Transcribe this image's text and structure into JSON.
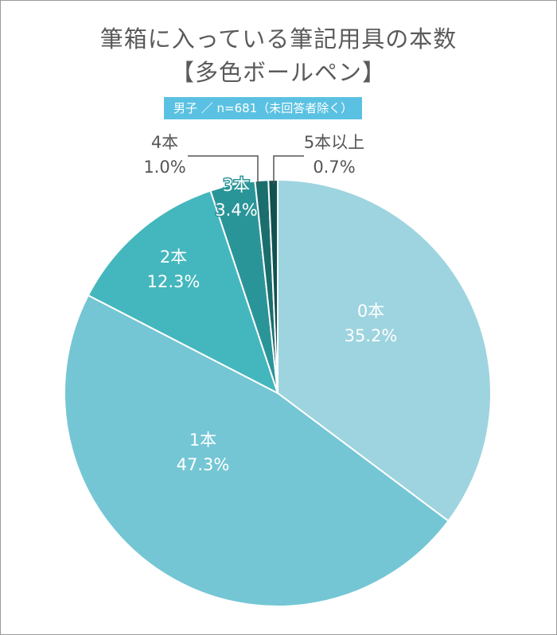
{
  "title_line1": "筆箱に入っている筆記用具の本数",
  "title_line2": "【多色ボールペン】",
  "subtitle": "男子 ／ n=681（未回答者除く）",
  "chart_data": {
    "type": "pie",
    "start": "12 o'clock, clockwise",
    "slices": [
      {
        "label": "0本",
        "value": 35.2,
        "value_label": "35.2%",
        "color": "#9dd4df"
      },
      {
        "label": "1本",
        "value": 47.3,
        "value_label": "47.3%",
        "color": "#74c6d4"
      },
      {
        "label": "2本",
        "value": 12.3,
        "value_label": "12.3%",
        "color": "#43b7bd"
      },
      {
        "label": "3本",
        "value": 3.4,
        "value_label": "3.4%",
        "color": "#2a9598"
      },
      {
        "label": "4本",
        "value": 1.0,
        "value_label": "1.0%",
        "color": "#1b6e6e"
      },
      {
        "label": "5本以上",
        "value": 0.7,
        "value_label": "0.7%",
        "color": "#10524f"
      }
    ]
  }
}
